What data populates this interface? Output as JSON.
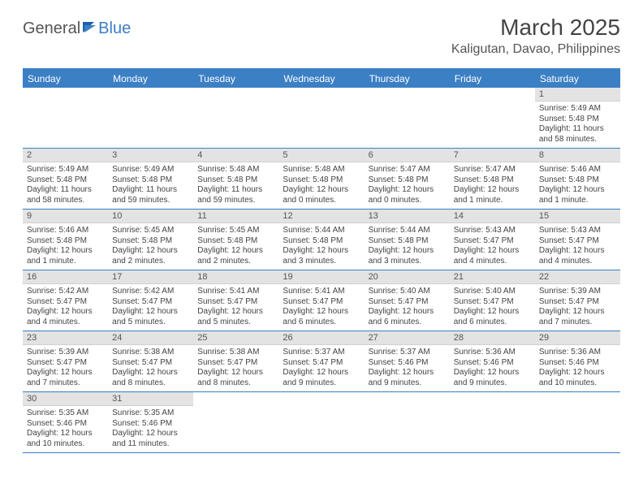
{
  "logo": {
    "text1": "General",
    "text2": "Blue"
  },
  "title": "March 2025",
  "location": "Kaligutan, Davao, Philippines",
  "colors": {
    "header_bar": "#3b7fc4",
    "daynum_bg": "#e3e3e3",
    "text": "#444444",
    "logo_gray": "#555555"
  },
  "weekdays": [
    "Sunday",
    "Monday",
    "Tuesday",
    "Wednesday",
    "Thursday",
    "Friday",
    "Saturday"
  ],
  "first_weekday_index": 6,
  "days": [
    {
      "n": 1,
      "sunrise": "5:49 AM",
      "sunset": "5:48 PM",
      "daylight": "11 hours and 58 minutes."
    },
    {
      "n": 2,
      "sunrise": "5:49 AM",
      "sunset": "5:48 PM",
      "daylight": "11 hours and 58 minutes."
    },
    {
      "n": 3,
      "sunrise": "5:49 AM",
      "sunset": "5:48 PM",
      "daylight": "11 hours and 59 minutes."
    },
    {
      "n": 4,
      "sunrise": "5:48 AM",
      "sunset": "5:48 PM",
      "daylight": "11 hours and 59 minutes."
    },
    {
      "n": 5,
      "sunrise": "5:48 AM",
      "sunset": "5:48 PM",
      "daylight": "12 hours and 0 minutes."
    },
    {
      "n": 6,
      "sunrise": "5:47 AM",
      "sunset": "5:48 PM",
      "daylight": "12 hours and 0 minutes."
    },
    {
      "n": 7,
      "sunrise": "5:47 AM",
      "sunset": "5:48 PM",
      "daylight": "12 hours and 1 minute."
    },
    {
      "n": 8,
      "sunrise": "5:46 AM",
      "sunset": "5:48 PM",
      "daylight": "12 hours and 1 minute."
    },
    {
      "n": 9,
      "sunrise": "5:46 AM",
      "sunset": "5:48 PM",
      "daylight": "12 hours and 1 minute."
    },
    {
      "n": 10,
      "sunrise": "5:45 AM",
      "sunset": "5:48 PM",
      "daylight": "12 hours and 2 minutes."
    },
    {
      "n": 11,
      "sunrise": "5:45 AM",
      "sunset": "5:48 PM",
      "daylight": "12 hours and 2 minutes."
    },
    {
      "n": 12,
      "sunrise": "5:44 AM",
      "sunset": "5:48 PM",
      "daylight": "12 hours and 3 minutes."
    },
    {
      "n": 13,
      "sunrise": "5:44 AM",
      "sunset": "5:48 PM",
      "daylight": "12 hours and 3 minutes."
    },
    {
      "n": 14,
      "sunrise": "5:43 AM",
      "sunset": "5:47 PM",
      "daylight": "12 hours and 4 minutes."
    },
    {
      "n": 15,
      "sunrise": "5:43 AM",
      "sunset": "5:47 PM",
      "daylight": "12 hours and 4 minutes."
    },
    {
      "n": 16,
      "sunrise": "5:42 AM",
      "sunset": "5:47 PM",
      "daylight": "12 hours and 4 minutes."
    },
    {
      "n": 17,
      "sunrise": "5:42 AM",
      "sunset": "5:47 PM",
      "daylight": "12 hours and 5 minutes."
    },
    {
      "n": 18,
      "sunrise": "5:41 AM",
      "sunset": "5:47 PM",
      "daylight": "12 hours and 5 minutes."
    },
    {
      "n": 19,
      "sunrise": "5:41 AM",
      "sunset": "5:47 PM",
      "daylight": "12 hours and 6 minutes."
    },
    {
      "n": 20,
      "sunrise": "5:40 AM",
      "sunset": "5:47 PM",
      "daylight": "12 hours and 6 minutes."
    },
    {
      "n": 21,
      "sunrise": "5:40 AM",
      "sunset": "5:47 PM",
      "daylight": "12 hours and 6 minutes."
    },
    {
      "n": 22,
      "sunrise": "5:39 AM",
      "sunset": "5:47 PM",
      "daylight": "12 hours and 7 minutes."
    },
    {
      "n": 23,
      "sunrise": "5:39 AM",
      "sunset": "5:47 PM",
      "daylight": "12 hours and 7 minutes."
    },
    {
      "n": 24,
      "sunrise": "5:38 AM",
      "sunset": "5:47 PM",
      "daylight": "12 hours and 8 minutes."
    },
    {
      "n": 25,
      "sunrise": "5:38 AM",
      "sunset": "5:47 PM",
      "daylight": "12 hours and 8 minutes."
    },
    {
      "n": 26,
      "sunrise": "5:37 AM",
      "sunset": "5:47 PM",
      "daylight": "12 hours and 9 minutes."
    },
    {
      "n": 27,
      "sunrise": "5:37 AM",
      "sunset": "5:46 PM",
      "daylight": "12 hours and 9 minutes."
    },
    {
      "n": 28,
      "sunrise": "5:36 AM",
      "sunset": "5:46 PM",
      "daylight": "12 hours and 9 minutes."
    },
    {
      "n": 29,
      "sunrise": "5:36 AM",
      "sunset": "5:46 PM",
      "daylight": "12 hours and 10 minutes."
    },
    {
      "n": 30,
      "sunrise": "5:35 AM",
      "sunset": "5:46 PM",
      "daylight": "12 hours and 10 minutes."
    },
    {
      "n": 31,
      "sunrise": "5:35 AM",
      "sunset": "5:46 PM",
      "daylight": "12 hours and 11 minutes."
    }
  ],
  "labels": {
    "sunrise": "Sunrise:",
    "sunset": "Sunset:",
    "daylight": "Daylight:"
  }
}
